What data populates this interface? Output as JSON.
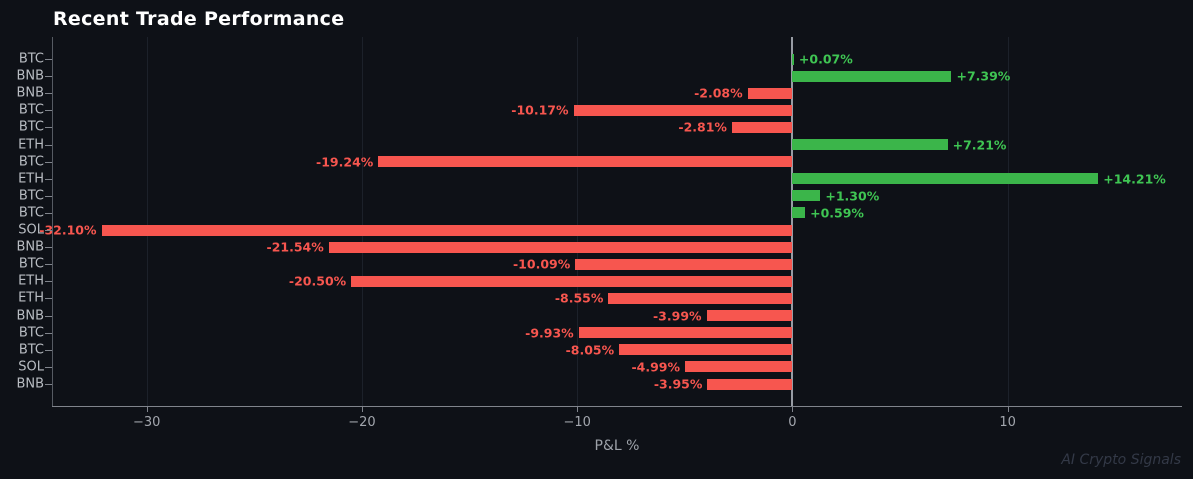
{
  "title": "Recent Trade Performance",
  "watermark": "AI Crypto Signals",
  "chart_data": {
    "type": "bar",
    "orientation": "horizontal",
    "title": "Recent Trade Performance",
    "xlabel": "P&L %",
    "ylabel": "",
    "legend": "none",
    "grid": true,
    "categories": [
      "BTC",
      "BNB",
      "BNB",
      "BTC",
      "BTC",
      "ETH",
      "BTC",
      "ETH",
      "BTC",
      "BTC",
      "SOL",
      "BNB",
      "BTC",
      "ETH",
      "ETH",
      "BNB",
      "BTC",
      "BTC",
      "SOL",
      "BNB"
    ],
    "values": [
      0.07,
      7.39,
      -2.08,
      -10.17,
      -2.81,
      7.21,
      -19.24,
      14.21,
      1.3,
      0.59,
      -32.1,
      -21.54,
      -10.09,
      -20.5,
      -8.55,
      -3.99,
      -9.93,
      -8.05,
      -4.99,
      -3.95
    ],
    "value_labels": [
      "+0.07%",
      "+7.39%",
      "-2.08%",
      "-10.17%",
      "-2.81%",
      "+7.21%",
      "-19.24%",
      "+14.21%",
      "+1.30%",
      "+0.59%",
      "-32.10%",
      "-21.54%",
      "-10.09%",
      "-20.50%",
      "-8.55%",
      "-3.99%",
      "-9.93%",
      "-8.05%",
      "-4.99%",
      "-3.95%"
    ],
    "x_ticks": [
      {
        "value": -30,
        "label": "−30"
      },
      {
        "value": -20,
        "label": "−20"
      },
      {
        "value": -10,
        "label": "−10"
      },
      {
        "value": 0,
        "label": "0"
      },
      {
        "value": 10,
        "label": "10"
      }
    ],
    "xlim": [
      -34.4,
      18.1
    ],
    "colors": {
      "positive_bar": "#3bb54a",
      "negative_bar": "#f7564f",
      "positive_label": "#3fc553",
      "negative_label": "#f7564f",
      "background": "#0e1117",
      "gridline": "#1c212a",
      "zero_line": "#979ca4",
      "axis": "#80848c",
      "x_tick_label": "#a2a6ad",
      "category_label": "#b9bdc3",
      "title": "#ffffff",
      "watermark": "#333947"
    }
  }
}
